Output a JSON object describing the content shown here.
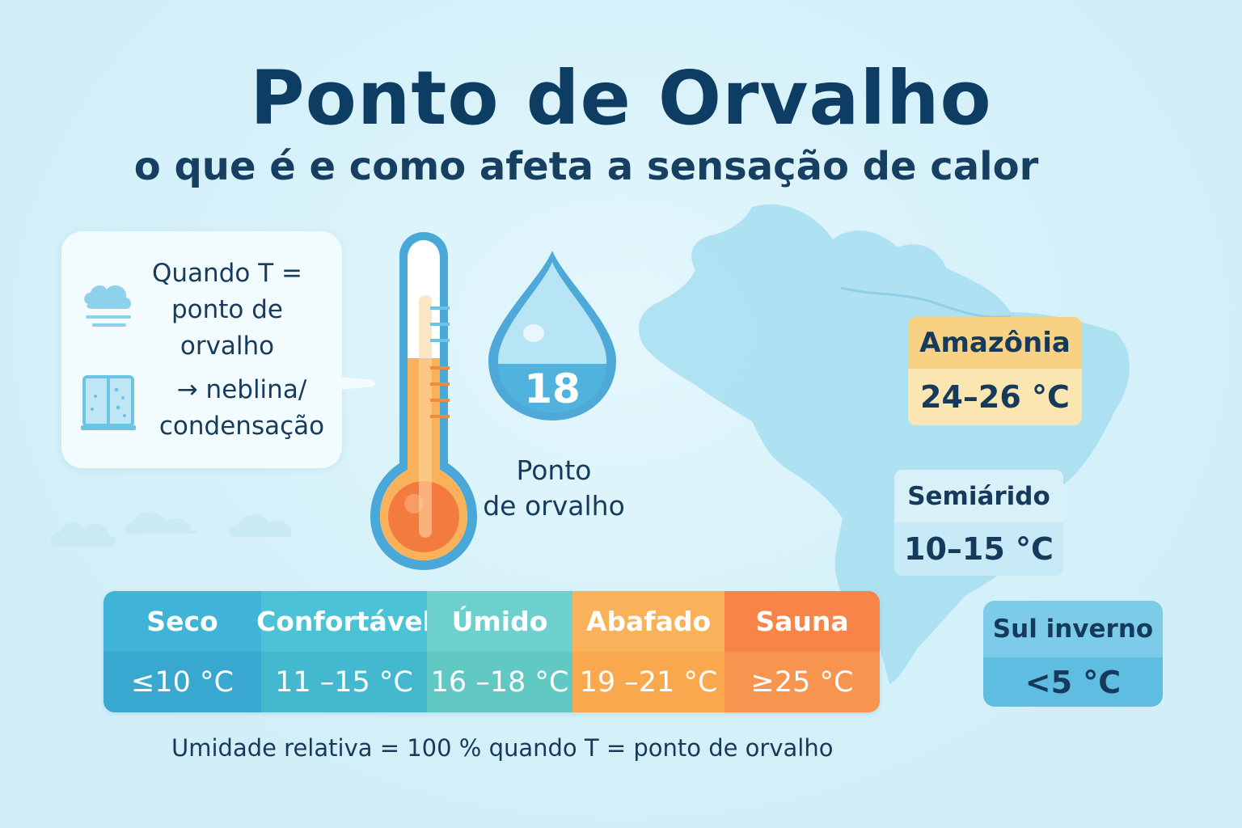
{
  "title": "Ponto de Orvalho",
  "subtitle": "o que é e como afeta a sensação de calor",
  "info_card": {
    "line1": "Quando T =\nponto de\norvalho",
    "line2": "→ neblina/\ncondensação",
    "icons": [
      "fog-cloud-icon",
      "window-condensation-icon"
    ]
  },
  "drop": {
    "value": "18",
    "label": "Ponto\nde orvalho"
  },
  "scale": [
    {
      "name": "Seco",
      "range": "≤10 °C",
      "color": "#40b4d8"
    },
    {
      "name": "Confortável",
      "range": "11 –15 °C",
      "color": "#4cc2d6"
    },
    {
      "name": "Úmido",
      "range": "16 –18 °C",
      "color": "#6dd0cc"
    },
    {
      "name": "Abafado",
      "range": "19 –21 °C",
      "color": "#f9b25a"
    },
    {
      "name": "Sauna",
      "range": "≥25 °C",
      "color": "#f8844a"
    }
  ],
  "footnote": "Umidade relativa = 100 % quando T = ponto de orvalho",
  "regions": {
    "amazonia": {
      "name": "Amazônia",
      "range": "24–26 °C"
    },
    "semiarido": {
      "name": "Semiárido",
      "range": "10–15 °C"
    },
    "sul": {
      "name": "Sul inverno",
      "range": "<5 °C"
    }
  }
}
